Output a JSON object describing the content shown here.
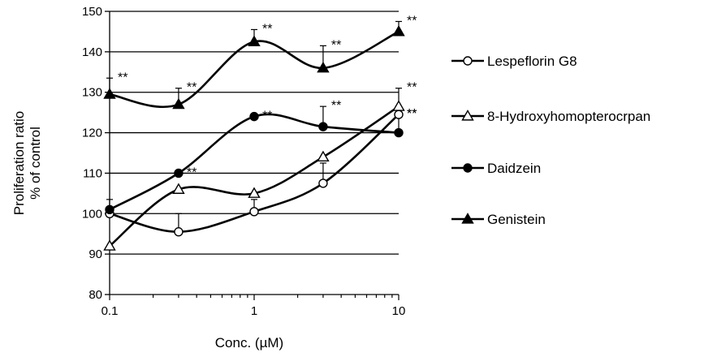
{
  "chart_data": {
    "type": "line",
    "title": "",
    "xlabel": "Conc. (µM)",
    "ylabel_lines": [
      "Proliferation ratio",
      "% of control"
    ],
    "x_scale": "log",
    "xlim": [
      0.1,
      10
    ],
    "ylim": [
      80,
      150
    ],
    "x_ticks": [
      0.1,
      1,
      10
    ],
    "x_tick_labels": [
      "0.1",
      "1",
      "10"
    ],
    "y_ticks": [
      80,
      90,
      100,
      110,
      120,
      130,
      140,
      150
    ],
    "y_tick_labels": [
      "80",
      "90",
      "100",
      "110",
      "120",
      "130",
      "140",
      "150"
    ],
    "grid": "horizontal",
    "legend_position": "right",
    "significance_label": "**",
    "x": [
      0.1,
      0.3,
      1,
      3,
      10
    ],
    "series": [
      {
        "name": "Lespeflorin G8",
        "marker": "circle-open",
        "values": [
          100,
          95.5,
          100.5,
          107.5,
          124.5
        ],
        "error": [
          3.5,
          4.5,
          3,
          5,
          0
        ],
        "significant": [
          false,
          false,
          false,
          false,
          true
        ]
      },
      {
        "name": "8-Hydroxyhomopterocrpan",
        "marker": "triangle-open",
        "values": [
          92,
          106,
          105,
          114,
          126.5
        ],
        "error": [
          0,
          0,
          0,
          0,
          4.5
        ],
        "significant": [
          false,
          false,
          false,
          false,
          true
        ]
      },
      {
        "name": "Daidzein",
        "marker": "circle-filled",
        "values": [
          101,
          110,
          124,
          121.5,
          120
        ],
        "error": [
          0,
          0,
          0,
          5,
          4.5
        ],
        "significant": [
          false,
          true,
          true,
          true,
          true
        ]
      },
      {
        "name": "Genistein",
        "marker": "triangle-filled",
        "values": [
          129.5,
          127,
          142.5,
          136,
          145
        ],
        "error": [
          4,
          4,
          3,
          5.5,
          2.5
        ],
        "significant": [
          true,
          true,
          true,
          true,
          true
        ]
      }
    ]
  }
}
